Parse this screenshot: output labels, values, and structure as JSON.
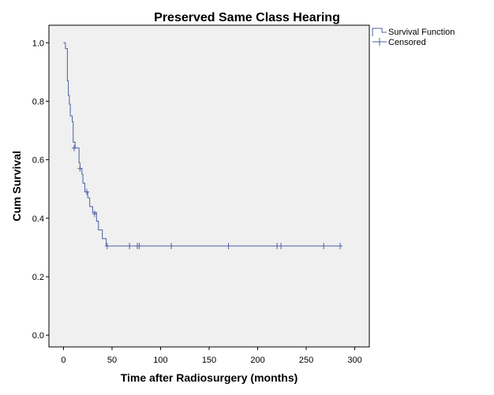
{
  "chart_data": {
    "type": "line",
    "title": "Preserved Same Class Hearing",
    "xlabel": "Time after Radiosurgery (months)",
    "ylabel": "Cum Survival",
    "xlim": [
      -15,
      315
    ],
    "ylim": [
      -0.04,
      1.06
    ],
    "xticks": [
      0,
      50,
      100,
      150,
      200,
      250,
      300
    ],
    "yticks": [
      0.0,
      0.2,
      0.4,
      0.6,
      0.8,
      1.0
    ],
    "ytick_labels": [
      "0.0",
      "0.2",
      "0.4",
      "0.6",
      "0.8",
      "1.0"
    ],
    "grid": false,
    "legend_position": "top-right, outside plot",
    "colors": {
      "series": "#4a5fa6",
      "plot_background": "#f0f0f0",
      "frame": "#000000"
    },
    "series": [
      {
        "name": "Survival Function",
        "step_points": [
          [
            0,
            1.0
          ],
          [
            2,
            0.98
          ],
          [
            4,
            0.87
          ],
          [
            5,
            0.82
          ],
          [
            6,
            0.79
          ],
          [
            7,
            0.75
          ],
          [
            9,
            0.73
          ],
          [
            10,
            0.66
          ],
          [
            12,
            0.64
          ],
          [
            16,
            0.59
          ],
          [
            17,
            0.57
          ],
          [
            19,
            0.55
          ],
          [
            20,
            0.52
          ],
          [
            22,
            0.49
          ],
          [
            25,
            0.47
          ],
          [
            27,
            0.44
          ],
          [
            30,
            0.42
          ],
          [
            34,
            0.39
          ],
          [
            36,
            0.36
          ],
          [
            40,
            0.33
          ],
          [
            44,
            0.305
          ],
          [
            285,
            0.305
          ]
        ]
      },
      {
        "name": "Censored",
        "points": [
          [
            11,
            0.64
          ],
          [
            17,
            0.57
          ],
          [
            24,
            0.49
          ],
          [
            32,
            0.415
          ],
          [
            45,
            0.305
          ],
          [
            68,
            0.305
          ],
          [
            76,
            0.305
          ],
          [
            78,
            0.305
          ],
          [
            111,
            0.305
          ],
          [
            170,
            0.305
          ],
          [
            220,
            0.305
          ],
          [
            224,
            0.305
          ],
          [
            268,
            0.305
          ],
          [
            285,
            0.305
          ]
        ]
      }
    ]
  }
}
